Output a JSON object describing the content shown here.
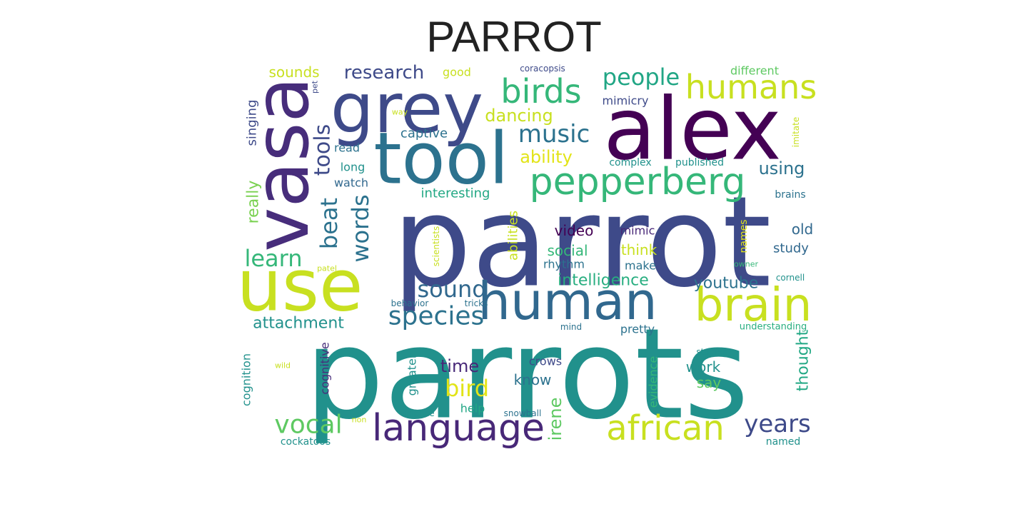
{
  "title": "PARROT",
  "palette": {
    "dark_purple": "#440154",
    "purple": "#472d7b",
    "indigo": "#3b528b",
    "blue": "#2c728e",
    "teal": "#21918c",
    "green_teal": "#28ae80",
    "green": "#5ec962",
    "lime": "#addc30",
    "yellow_green": "#c8e020",
    "yellow": "#e2e418"
  },
  "words": [
    {
      "text": "parrot",
      "color": "#3e4a89"
    },
    {
      "text": "parrots",
      "color": "#21918c"
    },
    {
      "text": "alex",
      "color": "#440154"
    },
    {
      "text": "tool",
      "color": "#2c728e"
    },
    {
      "text": "use",
      "color": "#c8e020"
    },
    {
      "text": "human",
      "color": "#31688e"
    },
    {
      "text": "grey",
      "color": "#3e4a89"
    },
    {
      "text": "vasa",
      "color": "#472d7b"
    },
    {
      "text": "brain",
      "color": "#c8e020"
    },
    {
      "text": "language",
      "color": "#482878"
    },
    {
      "text": "african",
      "color": "#c8e020"
    },
    {
      "text": "pepperberg",
      "color": "#35b779"
    },
    {
      "text": "birds",
      "color": "#35b779"
    },
    {
      "text": "humans",
      "color": "#c8e020"
    },
    {
      "text": "species",
      "color": "#2c728e"
    },
    {
      "text": "people",
      "color": "#21a685"
    },
    {
      "text": "music",
      "color": "#2c728e"
    },
    {
      "text": "years",
      "color": "#3e4a89"
    },
    {
      "text": "vocal",
      "color": "#5ec962"
    },
    {
      "text": "sound",
      "color": "#31688e"
    },
    {
      "text": "bird",
      "color": "#e2e418"
    },
    {
      "text": "learn",
      "color": "#35b779"
    },
    {
      "text": "words",
      "color": "#2c728e"
    },
    {
      "text": "beat",
      "color": "#2c728e"
    },
    {
      "text": "tools",
      "color": "#3e4a89"
    },
    {
      "text": "research",
      "color": "#3e4a89"
    },
    {
      "text": "dancing",
      "color": "#c8e020"
    },
    {
      "text": "ability",
      "color": "#e2e418"
    },
    {
      "text": "time",
      "color": "#482878"
    },
    {
      "text": "intelligence",
      "color": "#28ae80"
    },
    {
      "text": "youtube",
      "color": "#2c728e"
    },
    {
      "text": "using",
      "color": "#2c728e"
    },
    {
      "text": "attachment",
      "color": "#21918c"
    },
    {
      "text": "irene",
      "color": "#5ec962"
    },
    {
      "text": "really",
      "color": "#7ad151"
    },
    {
      "text": "thought",
      "color": "#22a884"
    },
    {
      "text": "sounds",
      "color": "#c8e020"
    },
    {
      "text": "captive",
      "color": "#2c728e"
    },
    {
      "text": "video",
      "color": "#440154"
    },
    {
      "text": "think",
      "color": "#c8e020"
    },
    {
      "text": "social",
      "color": "#35b779"
    },
    {
      "text": "old",
      "color": "#31688e"
    },
    {
      "text": "study",
      "color": "#31688e"
    },
    {
      "text": "know",
      "color": "#2c728e"
    },
    {
      "text": "work",
      "color": "#21918c"
    },
    {
      "text": "say",
      "color": "#5ec962"
    },
    {
      "text": "interesting",
      "color": "#22a884"
    },
    {
      "text": "singing",
      "color": "#3e4a89"
    },
    {
      "text": "good",
      "color": "#c8e020"
    },
    {
      "text": "different",
      "color": "#5ec962"
    },
    {
      "text": "mimicry",
      "color": "#3e4a89"
    },
    {
      "text": "long",
      "color": "#21918c"
    },
    {
      "text": "read",
      "color": "#2c728e"
    },
    {
      "text": "watch",
      "color": "#31688e"
    },
    {
      "text": "complex",
      "color": "#21918c"
    },
    {
      "text": "published",
      "color": "#21918c"
    },
    {
      "text": "mimic",
      "color": "#482878"
    },
    {
      "text": "make",
      "color": "#2c728e"
    },
    {
      "text": "rhythm",
      "color": "#2c728e"
    },
    {
      "text": "abilities",
      "color": "#c8e020"
    },
    {
      "text": "cognitive",
      "color": "#472d7b"
    },
    {
      "text": "cognition",
      "color": "#21918c"
    },
    {
      "text": "greater",
      "color": "#21918c"
    },
    {
      "text": "evidence",
      "color": "#35b779"
    },
    {
      "text": "help",
      "color": "#21a685"
    },
    {
      "text": "crows",
      "color": "#3e4a89"
    },
    {
      "text": "pretty",
      "color": "#2c728e"
    },
    {
      "text": "cockatoos",
      "color": "#21918c"
    },
    {
      "text": "named",
      "color": "#21918c"
    },
    {
      "text": "brains",
      "color": "#2c728e"
    },
    {
      "text": "names",
      "color": "#e2e418"
    },
    {
      "text": "imitate",
      "color": "#c8e020"
    },
    {
      "text": "scientists",
      "color": "#c8e020"
    },
    {
      "text": "coracopsis",
      "color": "#3e4a89"
    },
    {
      "text": "pet",
      "color": "#3e4a89"
    },
    {
      "text": "way",
      "color": "#c8e020"
    },
    {
      "text": "patel",
      "color": "#c8e020"
    },
    {
      "text": "owner",
      "color": "#35b779"
    },
    {
      "text": "cornell",
      "color": "#21918c"
    },
    {
      "text": "behavior",
      "color": "#2c728e"
    },
    {
      "text": "tricks",
      "color": "#2c728e"
    },
    {
      "text": "mind",
      "color": "#2c728e"
    },
    {
      "text": "understanding",
      "color": "#28ae80"
    },
    {
      "text": "studies",
      "color": "#21918c"
    },
    {
      "text": "wild",
      "color": "#c8e020"
    },
    {
      "text": "non",
      "color": "#c8e020"
    },
    {
      "text": "science",
      "color": "#21918c"
    },
    {
      "text": "snowball",
      "color": "#2c728e"
    }
  ]
}
